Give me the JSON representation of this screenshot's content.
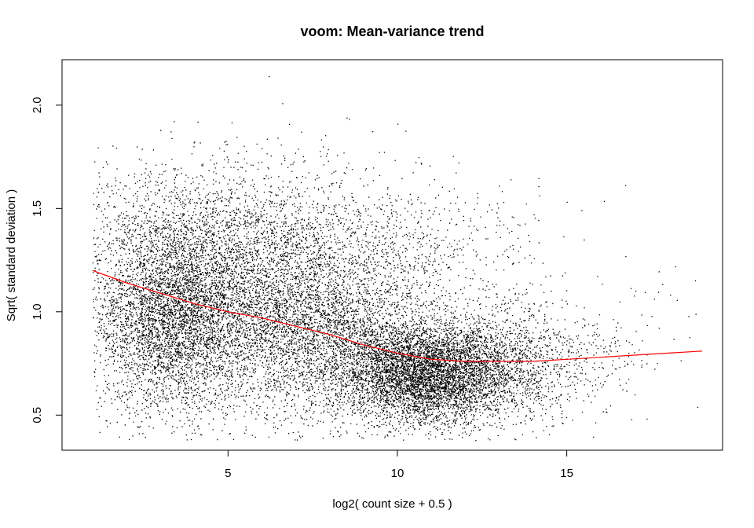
{
  "chart_data": {
    "type": "scatter",
    "title": "voom: Mean-variance trend",
    "xlabel": "log2( count size + 0.5 )",
    "ylabel": "Sqrt( standard deviation )",
    "xlim": [
      0.1,
      19.6
    ],
    "ylim": [
      0.33,
      2.22
    ],
    "x_ticks": [
      5,
      10,
      15
    ],
    "y_ticks": [
      0.5,
      1.0,
      1.5,
      2.0
    ],
    "x_tick_labels": [
      "5",
      "10",
      "15"
    ],
    "y_tick_labels": [
      "0.5",
      "1.0",
      "1.5",
      "2.0"
    ],
    "grid": false,
    "legend": "none",
    "point_color": "#000000",
    "trend_color": "#ff0000",
    "trend_line": {
      "x": [
        1.0,
        2.0,
        3.0,
        4.0,
        5.0,
        6.0,
        7.0,
        8.0,
        9.0,
        10.0,
        11.0,
        12.0,
        13.0,
        14.0,
        15.0,
        16.0,
        17.0,
        18.0,
        19.0
      ],
      "y": [
        1.2,
        1.14,
        1.09,
        1.04,
        1.0,
        0.97,
        0.93,
        0.89,
        0.84,
        0.8,
        0.77,
        0.76,
        0.76,
        0.76,
        0.77,
        0.78,
        0.79,
        0.8,
        0.81
      ]
    },
    "clusters": [
      {
        "cx": 3.3,
        "cy": 0.98,
        "sx": 1.2,
        "sy": 0.23,
        "n": 4200
      },
      {
        "cx": 5.5,
        "cy": 1.05,
        "sx": 1.8,
        "sy": 0.26,
        "n": 3000
      },
      {
        "cx": 8.0,
        "cy": 0.92,
        "sx": 1.6,
        "sy": 0.22,
        "n": 2800
      },
      {
        "cx": 10.8,
        "cy": 0.7,
        "sx": 1.3,
        "sy": 0.12,
        "n": 5200
      },
      {
        "cx": 13.0,
        "cy": 0.75,
        "sx": 1.5,
        "sy": 0.14,
        "n": 1500
      },
      {
        "cx": 4.5,
        "cy": 1.45,
        "sx": 2.3,
        "sy": 0.17,
        "n": 1100
      },
      {
        "cx": 9.5,
        "cy": 1.25,
        "sx": 2.2,
        "sy": 0.2,
        "n": 900
      },
      {
        "cx": 16.0,
        "cy": 0.85,
        "sx": 1.4,
        "sy": 0.18,
        "n": 120
      }
    ],
    "outliers": [
      {
        "x": 6.2,
        "y": 2.14
      },
      {
        "x": 6.6,
        "y": 2.01
      },
      {
        "x": 3.0,
        "y": 1.88
      },
      {
        "x": 4.1,
        "y": 1.92
      },
      {
        "x": 8.5,
        "y": 1.94
      },
      {
        "x": 10.0,
        "y": 1.91
      },
      {
        "x": 2.3,
        "y": 1.8
      },
      {
        "x": 1.1,
        "y": 1.5
      },
      {
        "x": 18.2,
        "y": 1.22
      },
      {
        "x": 18.8,
        "y": 0.99
      },
      {
        "x": 17.5,
        "y": 0.98
      },
      {
        "x": 1.3,
        "y": 1.7
      },
      {
        "x": 7.8,
        "y": 1.8
      },
      {
        "x": 15.5,
        "y": 1.35
      },
      {
        "x": 17.0,
        "y": 0.6
      },
      {
        "x": 12.3,
        "y": 0.38
      },
      {
        "x": 2.6,
        "y": 0.62
      },
      {
        "x": 16.9,
        "y": 0.48
      }
    ]
  }
}
